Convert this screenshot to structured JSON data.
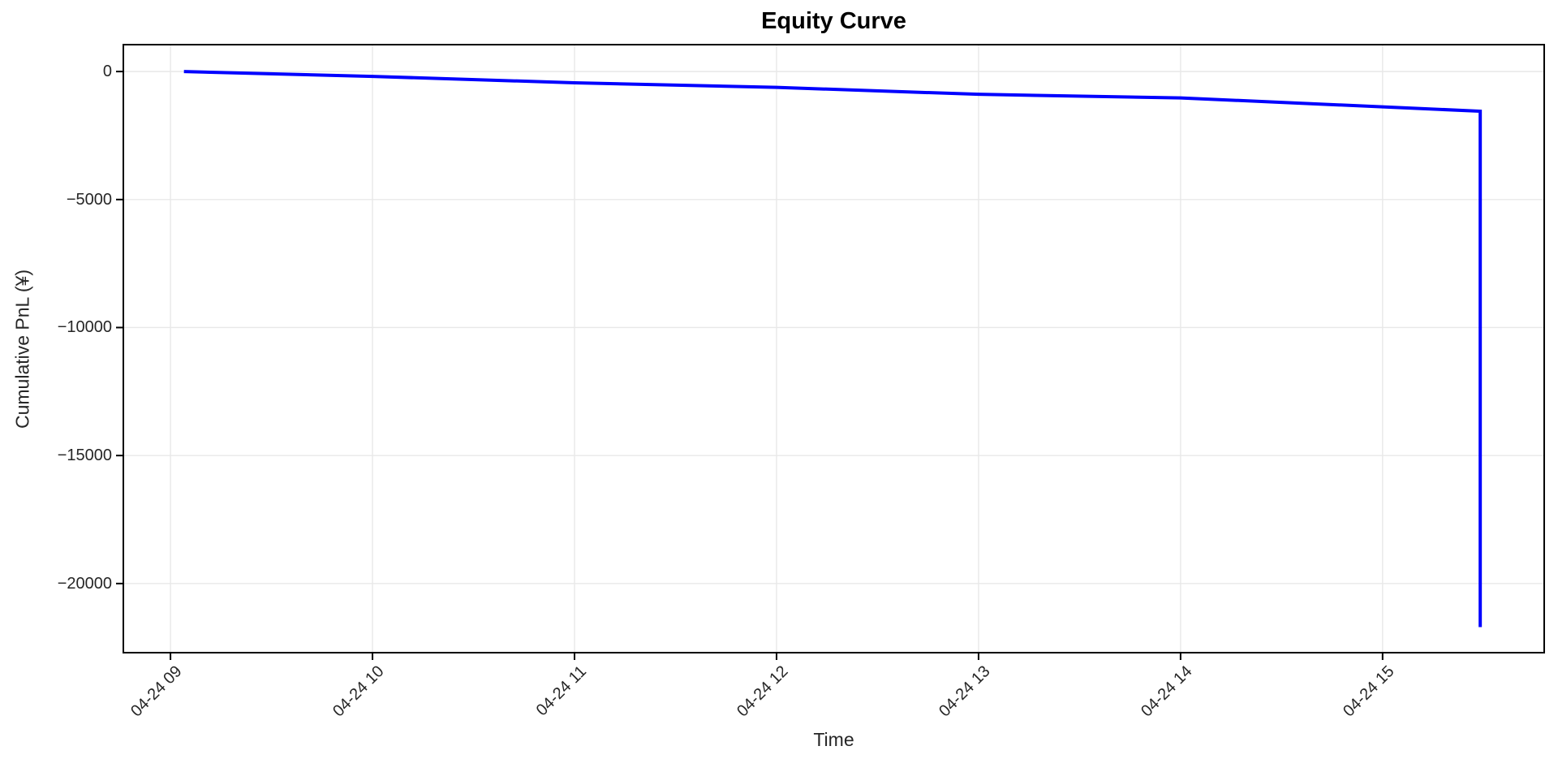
{
  "figure": {
    "background": "#ffffff"
  },
  "chart_data": {
    "type": "line",
    "title": "Equity Curve",
    "xlabel": "Time",
    "ylabel": "Cumulative PnL (¥)",
    "date": "04-24",
    "legend": "none",
    "grid": true,
    "grid_color": "#e8e8e8",
    "axis_color": "#000000",
    "tick_color": "#000000",
    "text_color": "#262626",
    "x_tick_labels": [
      "04-24 09",
      "04-24 10",
      "04-24 11",
      "04-24 12",
      "04-24 13",
      "04-24 14",
      "04-24 15"
    ],
    "x_tick_times": [
      "09:00",
      "10:00",
      "11:00",
      "12:00",
      "13:00",
      "14:00",
      "15:00"
    ],
    "x_range_times": [
      "08:46",
      "15:48"
    ],
    "y_ticks": [
      {
        "label": "0",
        "value": 0
      },
      {
        "label": "−5000",
        "value": -5000
      },
      {
        "label": "−10000",
        "value": -10000
      },
      {
        "label": "−15000",
        "value": -15000
      },
      {
        "label": "−20000",
        "value": -20000
      }
    ],
    "ylim": [
      -22700,
      1050
    ],
    "series": [
      {
        "name": "Cumulative PnL",
        "color": "#0000ff",
        "line_width": 4,
        "points": [
          {
            "time": "09:04",
            "value": 0
          },
          {
            "time": "10:00",
            "value": -190
          },
          {
            "time": "11:00",
            "value": -440
          },
          {
            "time": "12:00",
            "value": -620
          },
          {
            "time": "13:00",
            "value": -890
          },
          {
            "time": "14:00",
            "value": -1030
          },
          {
            "time": "15:00",
            "value": -1380
          },
          {
            "time": "15:29",
            "value": -1550
          },
          {
            "time": "15:29",
            "value": -21700
          }
        ]
      }
    ]
  }
}
